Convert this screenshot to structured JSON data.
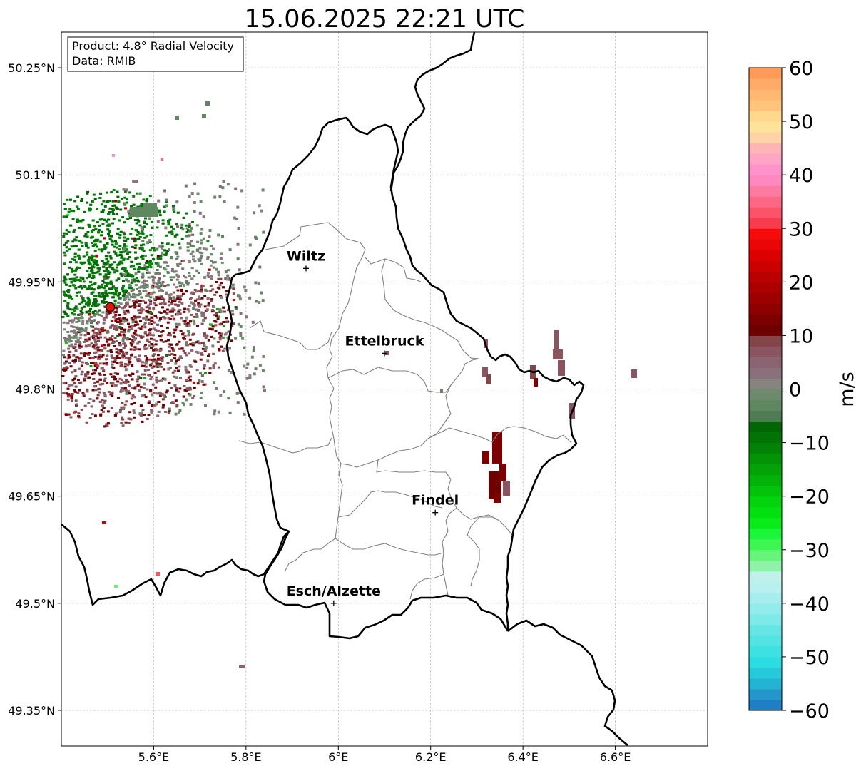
{
  "title": "15.06.2025 22:21 UTC",
  "info_box": {
    "line1": "Product: 4.8° Radial Velocity",
    "line2": "Data: RMIB"
  },
  "axes": {
    "lon_ticks": [
      {
        "value": 5.6,
        "label": "5.6°E"
      },
      {
        "value": 5.8,
        "label": "5.8°E"
      },
      {
        "value": 6.0,
        "label": "6°E"
      },
      {
        "value": 6.2,
        "label": "6.2°E"
      },
      {
        "value": 6.4,
        "label": "6.4°E"
      },
      {
        "value": 6.6,
        "label": "6.6°E"
      }
    ],
    "lat_ticks": [
      {
        "value": 50.25,
        "label": "50.25°N"
      },
      {
        "value": 50.1,
        "label": "50.1°N"
      },
      {
        "value": 49.95,
        "label": "49.95°N"
      },
      {
        "value": 49.8,
        "label": "49.8°N"
      },
      {
        "value": 49.65,
        "label": "49.65°N"
      },
      {
        "value": 49.5,
        "label": "49.5°N"
      },
      {
        "value": 49.35,
        "label": "49.35°N"
      }
    ],
    "lon_range": [
      5.4,
      6.8
    ],
    "lat_range": [
      49.3,
      50.3
    ],
    "grid": true
  },
  "cities": [
    {
      "name": "Wiltz",
      "lon": 5.93,
      "lat": 49.969
    },
    {
      "name": "Ettelbruck",
      "lon": 6.1,
      "lat": 49.85
    },
    {
      "name": "Findel",
      "lon": 6.21,
      "lat": 49.627
    },
    {
      "name": "Esch/Alzette",
      "lon": 5.99,
      "lat": 49.5
    }
  ],
  "radar_site": {
    "lon": 5.506,
    "lat": 49.915,
    "color": "#e8150c"
  },
  "colorbar": {
    "label": "m/s",
    "min": -60,
    "max": 60,
    "ticks": [
      {
        "value": 60,
        "label": "60"
      },
      {
        "value": 50,
        "label": "50"
      },
      {
        "value": 40,
        "label": "40"
      },
      {
        "value": 30,
        "label": "30"
      },
      {
        "value": 20,
        "label": "20"
      },
      {
        "value": 10,
        "label": "10"
      },
      {
        "value": 0,
        "label": "0"
      },
      {
        "value": -10,
        "label": "−10"
      },
      {
        "value": -20,
        "label": "−20"
      },
      {
        "value": -30,
        "label": "−30"
      },
      {
        "value": -40,
        "label": "−40"
      },
      {
        "value": -50,
        "label": "−50"
      },
      {
        "value": -60,
        "label": "−60"
      }
    ],
    "bands": [
      {
        "from": -60,
        "to": -58,
        "color": "#1f7fc4"
      },
      {
        "from": -58,
        "to": -56,
        "color": "#2496c9"
      },
      {
        "from": -56,
        "to": -54,
        "color": "#22b4d2"
      },
      {
        "from": -54,
        "to": -52,
        "color": "#26c9d9"
      },
      {
        "from": -52,
        "to": -50,
        "color": "#2bdde0"
      },
      {
        "from": -50,
        "to": -48,
        "color": "#3ee1e1"
      },
      {
        "from": -48,
        "to": -46,
        "color": "#52e3e3"
      },
      {
        "from": -46,
        "to": -44,
        "color": "#66e5e5"
      },
      {
        "from": -44,
        "to": -42,
        "color": "#7ee9e9"
      },
      {
        "from": -42,
        "to": -40,
        "color": "#93ecec"
      },
      {
        "from": -40,
        "to": -38,
        "color": "#a6eeee"
      },
      {
        "from": -38,
        "to": -36,
        "color": "#b8f0f0"
      },
      {
        "from": -36,
        "to": -34,
        "color": "#bff0ea"
      },
      {
        "from": -34,
        "to": -32,
        "color": "#8ef3a8"
      },
      {
        "from": -32,
        "to": -30,
        "color": "#66f47a"
      },
      {
        "from": -30,
        "to": -28,
        "color": "#3cf652"
      },
      {
        "from": -28,
        "to": -26,
        "color": "#1cf63a"
      },
      {
        "from": -26,
        "to": -24,
        "color": "#08ec1a"
      },
      {
        "from": -24,
        "to": -22,
        "color": "#03e010"
      },
      {
        "from": -22,
        "to": -20,
        "color": "#03d40e"
      },
      {
        "from": -20,
        "to": -18,
        "color": "#03c40b"
      },
      {
        "from": -18,
        "to": -16,
        "color": "#03b30a"
      },
      {
        "from": -16,
        "to": -14,
        "color": "#03a308"
      },
      {
        "from": -14,
        "to": -12,
        "color": "#039307"
      },
      {
        "from": -12,
        "to": -10,
        "color": "#028306"
      },
      {
        "from": -10,
        "to": -8,
        "color": "#027305"
      },
      {
        "from": -8,
        "to": -6,
        "color": "#026604"
      },
      {
        "from": -6,
        "to": -4,
        "color": "#4f7c52"
      },
      {
        "from": -4,
        "to": -2,
        "color": "#5f8760"
      },
      {
        "from": -2,
        "to": 0,
        "color": "#6e8a6c"
      },
      {
        "from": 0,
        "to": 2,
        "color": "#86847e"
      },
      {
        "from": 2,
        "to": 4,
        "color": "#8a707a"
      },
      {
        "from": 4,
        "to": 6,
        "color": "#8a6470"
      },
      {
        "from": 6,
        "to": 8,
        "color": "#8a5560"
      },
      {
        "from": 8,
        "to": 10,
        "color": "#844549"
      },
      {
        "from": 10,
        "to": 12,
        "color": "#6e0000"
      },
      {
        "from": 12,
        "to": 14,
        "color": "#7d0000"
      },
      {
        "from": 14,
        "to": 16,
        "color": "#8c0000"
      },
      {
        "from": 16,
        "to": 18,
        "color": "#9c0000"
      },
      {
        "from": 18,
        "to": 20,
        "color": "#ab0000"
      },
      {
        "from": 20,
        "to": 22,
        "color": "#bb0000"
      },
      {
        "from": 22,
        "to": 24,
        "color": "#cc0000"
      },
      {
        "from": 24,
        "to": 26,
        "color": "#dc0000"
      },
      {
        "from": 26,
        "to": 28,
        "color": "#ea0606"
      },
      {
        "from": 28,
        "to": 30,
        "color": "#f60c0c"
      },
      {
        "from": 30,
        "to": 32,
        "color": "#f83c4e"
      },
      {
        "from": 32,
        "to": 34,
        "color": "#fb5468"
      },
      {
        "from": 34,
        "to": 36,
        "color": "#fc6884"
      },
      {
        "from": 36,
        "to": 38,
        "color": "#fd7aa0"
      },
      {
        "from": 38,
        "to": 40,
        "color": "#fe88bf"
      },
      {
        "from": 40,
        "to": 42,
        "color": "#fe93cc"
      },
      {
        "from": 42,
        "to": 44,
        "color": "#fea5c6"
      },
      {
        "from": 44,
        "to": 46,
        "color": "#ffb5b5"
      },
      {
        "from": 46,
        "to": 48,
        "color": "#ffd2a8"
      },
      {
        "from": 48,
        "to": 50,
        "color": "#ffe39a"
      },
      {
        "from": 50,
        "to": 52,
        "color": "#ffd88c"
      },
      {
        "from": 52,
        "to": 54,
        "color": "#ffc47c"
      },
      {
        "from": 54,
        "to": 56,
        "color": "#ffb872"
      },
      {
        "from": 56,
        "to": 58,
        "color": "#ffaa66"
      },
      {
        "from": 58,
        "to": 60,
        "color": "#ff9a58"
      }
    ]
  },
  "colors": {
    "border": "#000000",
    "cantons": "#808080",
    "grid": "#b0b0b0"
  }
}
